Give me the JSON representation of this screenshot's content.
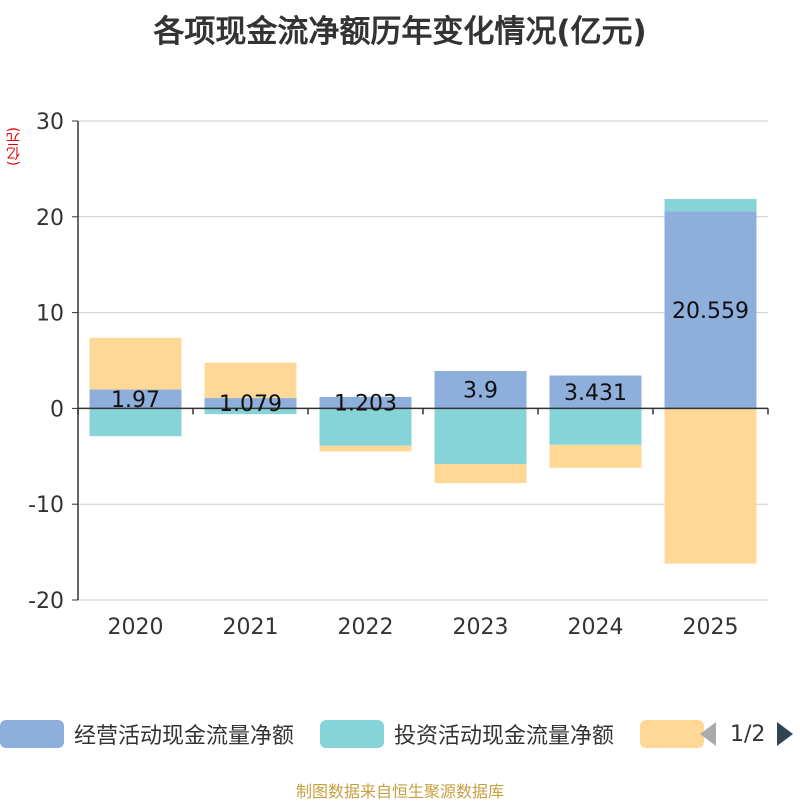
{
  "chart_data": {
    "type": "bar",
    "stacked": true,
    "title": "各项现金流净额历年变化情况(亿元)",
    "ylabel": "(亿元)",
    "categories": [
      "2020",
      "2021",
      "2022",
      "2023",
      "2024",
      "2025"
    ],
    "ylim": [
      -20,
      30
    ],
    "yticks": [
      30,
      20,
      10,
      0,
      -10,
      -20
    ],
    "grid": true,
    "series": [
      {
        "name": "经营活动现金流量净额",
        "color": "#8eaedb",
        "values": [
          1.97,
          1.079,
          1.203,
          3.9,
          3.431,
          20.559
        ],
        "show_labels": true
      },
      {
        "name": "投资活动现金流量净额",
        "color": "#86d4d8",
        "values": [
          -2.9,
          -0.6,
          -3.9,
          -5.8,
          -3.8,
          1.3
        ],
        "show_labels": false
      },
      {
        "name": "",
        "color": "#ffd897",
        "values": [
          5.4,
          3.7,
          -0.6,
          -2.0,
          -2.4,
          -16.2
        ],
        "show_labels": false
      }
    ],
    "legend_position": "bottom"
  },
  "legend": {
    "items": [
      {
        "label": "经营活动现金流量净额",
        "color": "#8eaedb"
      },
      {
        "label": "投资活动现金流量净额",
        "color": "#86d4d8"
      },
      {
        "label": "",
        "color": "#ffd897"
      }
    ],
    "page_indicator": "1/2"
  },
  "source_note": "制图数据来自恒生聚源数据库"
}
